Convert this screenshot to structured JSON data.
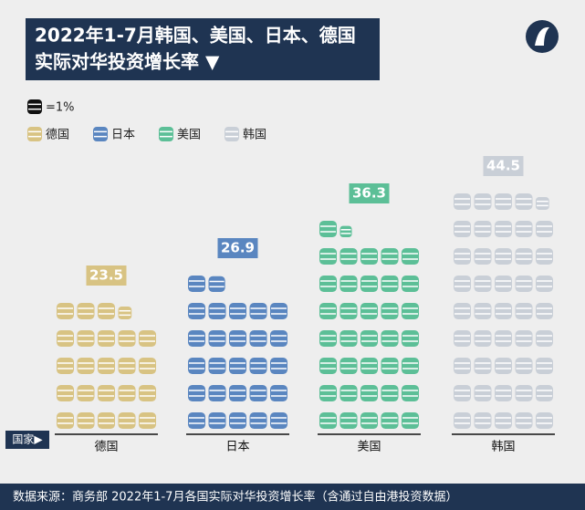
{
  "chart_data": {
    "type": "pictogram",
    "title": "2022年1-7月韩国、美国、日本、德国",
    "subtitle": "实际对华投资增长率 ▼",
    "unit": 1,
    "unit_label": "=1%",
    "axis_label": "国家▶",
    "categories": [
      "德国",
      "日本",
      "美国",
      "韩国"
    ],
    "values": [
      23.5,
      26.9,
      36.3,
      44.5
    ],
    "colors": [
      "#d8c383",
      "#5a86c0",
      "#5cbf97",
      "#c9cfd7"
    ],
    "source": "数据来源：商务部 2022年1-7月各国实际对华投资增长率（含通过自由港投资数据）"
  }
}
